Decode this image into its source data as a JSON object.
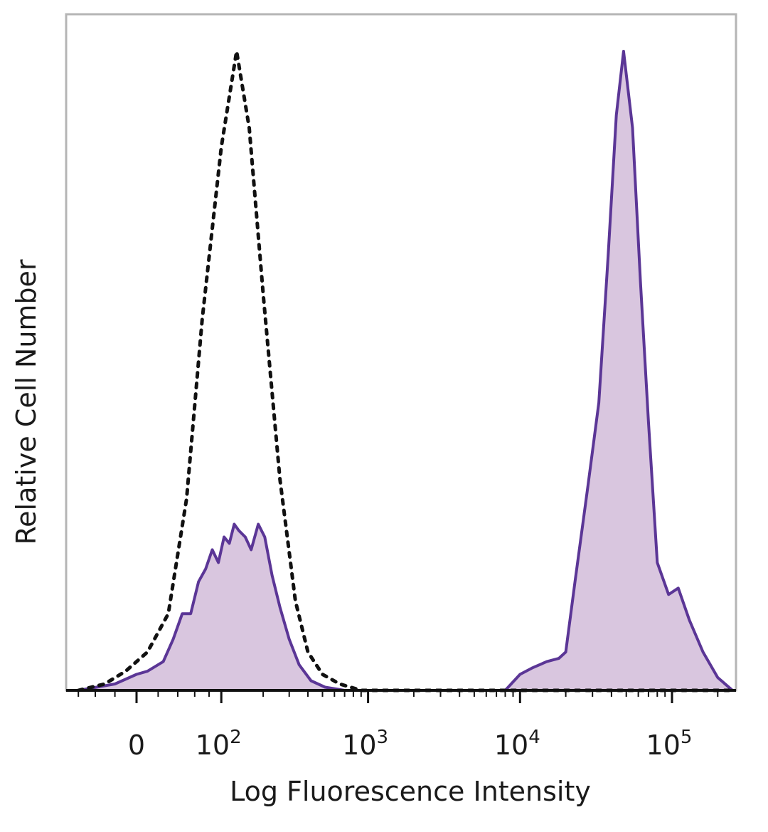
{
  "chart_data": {
    "type": "area",
    "xlabel": "Log Fluorescence Intensity",
    "ylabel": "Relative Cell Number",
    "x_scale": "biexponential",
    "x_ticks": [
      {
        "value": 0,
        "label": "0",
        "base": "",
        "exp": ""
      },
      {
        "value": 100,
        "label": "10^2",
        "base": "10",
        "exp": "2"
      },
      {
        "value": 1000,
        "label": "10^3",
        "base": "10",
        "exp": "3"
      },
      {
        "value": 10000,
        "label": "10^4",
        "base": "10",
        "exp": "4"
      },
      {
        "value": 100000,
        "label": "10^5",
        "base": "10",
        "exp": "5"
      }
    ],
    "ylim": [
      0,
      100
    ],
    "grid": false,
    "colors": {
      "stained_line": "#5b3696",
      "stained_fill": "#d9c6df",
      "control_line": "#111111",
      "frame": "#b5b5b5"
    },
    "series": [
      {
        "style": "dotted-outline",
        "x": [
          -60,
          -30,
          -10,
          10,
          30,
          50,
          70,
          100,
          130,
          160,
          200,
          260,
          330,
          400,
          500,
          650,
          900,
          1500,
          3000,
          8000,
          30000,
          100000,
          250000
        ],
        "y": [
          0,
          1,
          3,
          6,
          12,
          30,
          58,
          85,
          100,
          88,
          62,
          33,
          14,
          6,
          2.5,
          1,
          0,
          0,
          0,
          0,
          0,
          0,
          0
        ]
      },
      {
        "style": "filled-solid",
        "x": [
          -60,
          -20,
          0,
          10,
          25,
          35,
          45,
          55,
          65,
          75,
          85,
          95,
          105,
          115,
          125,
          135,
          150,
          165,
          185,
          205,
          230,
          260,
          300,
          350,
          420,
          520,
          700,
          1000,
          3000,
          8000,
          10000,
          12000,
          15000,
          18000,
          20000,
          23000,
          28000,
          33000,
          38000,
          43000,
          48000,
          55000,
          62000,
          70000,
          80000,
          95000,
          110000,
          130000,
          160000,
          200000,
          250000
        ],
        "y": [
          0,
          1,
          2.5,
          3,
          4.5,
          8,
          12,
          12,
          17,
          19,
          22,
          20,
          24,
          23,
          26,
          25,
          24,
          22,
          26,
          24,
          18,
          13,
          8,
          4,
          1.5,
          0.5,
          0,
          0,
          0,
          0,
          2.5,
          3.5,
          4.5,
          5,
          6,
          17,
          32,
          45,
          68,
          90,
          100,
          88,
          64,
          42,
          20,
          15,
          16,
          11,
          6,
          2,
          0
        ]
      }
    ]
  }
}
